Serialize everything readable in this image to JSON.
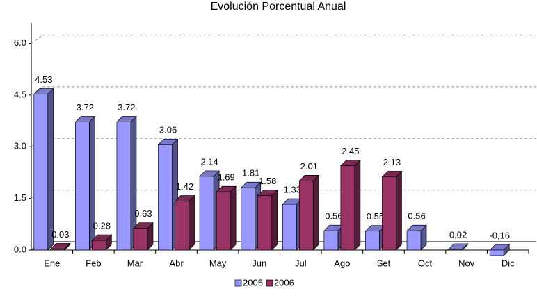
{
  "chart_data": {
    "type": "bar3d",
    "title": "Evolución Porcentual Anual",
    "categories": [
      "Ene",
      "Feb",
      "Mar",
      "Abr",
      "May",
      "Jun",
      "Jul",
      "Ago",
      "Set",
      "Oct",
      "Nov",
      "Dic"
    ],
    "series": [
      {
        "name": "2005",
        "color": "#9999ff",
        "values": [
          4.53,
          3.72,
          3.72,
          3.06,
          2.14,
          1.81,
          1.33,
          0.56,
          0.55,
          0.56,
          0.02,
          -0.16
        ],
        "value_labels": [
          "4.53",
          "3.72",
          "3.72",
          "3.06",
          "2.14",
          "1.81",
          "1.33",
          "0.56",
          "0.55",
          "0.56",
          "0,02",
          "-0,16"
        ]
      },
      {
        "name": "2006",
        "color": "#993366",
        "values": [
          0.03,
          0.28,
          0.63,
          1.42,
          1.69,
          1.58,
          2.01,
          2.45,
          2.13,
          null,
          null,
          null
        ]
      }
    ],
    "ylim": [
      0,
      7
    ],
    "yticks": [
      {
        "value": 0,
        "label": "0.0"
      },
      {
        "value": 1.5,
        "label": "1.5"
      },
      {
        "value": 3,
        "label": "3.0"
      },
      {
        "value": 4.5,
        "label": "4.5"
      },
      {
        "value": 6,
        "label": "6.0"
      }
    ],
    "grid": true,
    "legend": "bottom"
  }
}
